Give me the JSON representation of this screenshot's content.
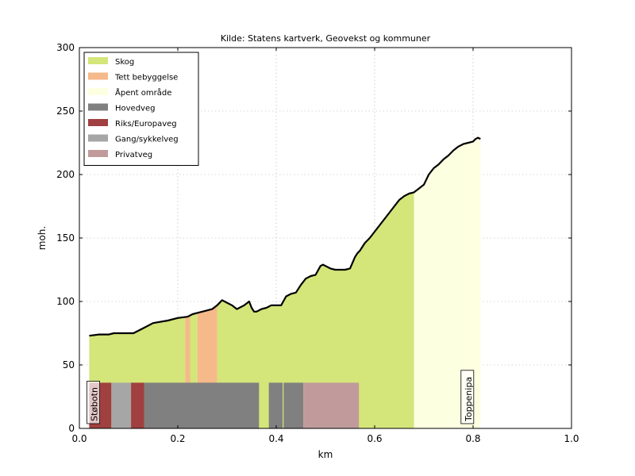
{
  "chart_data": {
    "type": "area",
    "title": "Kilde: Statens kartverk, Geovekst og kommuner",
    "xlabel": "km",
    "ylabel": "moh.",
    "xlim": [
      0.0,
      1.0
    ],
    "ylim": [
      0,
      300
    ],
    "xticks": [
      "0.0",
      "0.2",
      "0.4",
      "0.6",
      "0.8",
      "1.0"
    ],
    "yticks": [
      "0",
      "50",
      "100",
      "150",
      "200",
      "250",
      "300"
    ],
    "grid": true,
    "legend_position": "top-left",
    "legend": [
      {
        "label": "Skog",
        "color": "#d4e57a"
      },
      {
        "label": "Tett bebyggelse",
        "color": "#f5b98a"
      },
      {
        "label": "Åpent område",
        "color": "#fdffe1"
      },
      {
        "label": "Hovedveg",
        "color": "#808080"
      },
      {
        "label": "Riks/Europaveg",
        "color": "#a04040"
      },
      {
        "label": "Gang/sykkelveg",
        "color": "#a6a6a6"
      },
      {
        "label": "Privatveg",
        "color": "#c19b9b"
      }
    ],
    "elevation_profile": {
      "x": [
        0.02,
        0.04,
        0.06,
        0.07,
        0.1,
        0.11,
        0.13,
        0.15,
        0.18,
        0.2,
        0.22,
        0.23,
        0.25,
        0.27,
        0.28,
        0.29,
        0.3,
        0.31,
        0.32,
        0.335,
        0.345,
        0.35,
        0.355,
        0.36,
        0.37,
        0.38,
        0.39,
        0.4,
        0.41,
        0.42,
        0.43,
        0.44,
        0.45,
        0.46,
        0.47,
        0.48,
        0.49,
        0.495,
        0.5,
        0.51,
        0.52,
        0.53,
        0.54,
        0.55,
        0.56,
        0.565,
        0.57,
        0.58,
        0.59,
        0.6,
        0.61,
        0.62,
        0.63,
        0.64,
        0.65,
        0.66,
        0.67,
        0.68,
        0.69,
        0.7,
        0.71,
        0.72,
        0.73,
        0.74,
        0.75,
        0.76,
        0.77,
        0.78,
        0.79,
        0.8,
        0.805,
        0.81,
        0.815
      ],
      "y": [
        73,
        74,
        74,
        75,
        75,
        75,
        79,
        83,
        85,
        87,
        88,
        90,
        92,
        94,
        97,
        101,
        99,
        97,
        94,
        97,
        100,
        95,
        92,
        92,
        94,
        95,
        97,
        97,
        97,
        104,
        106,
        107,
        113,
        118,
        120,
        121,
        128,
        129,
        128,
        126,
        125,
        125,
        125,
        126,
        135,
        138,
        140,
        146,
        150,
        155,
        160,
        165,
        170,
        175,
        180,
        183,
        185,
        186,
        189,
        192,
        200,
        205,
        208,
        212,
        215,
        219,
        222,
        224,
        225,
        226,
        228,
        229,
        228
      ]
    },
    "land_cover": [
      {
        "label": "Skog",
        "x_start": 0.02,
        "x_end": 0.215
      },
      {
        "label": "Tett bebyggelse",
        "x_start": 0.215,
        "x_end": 0.225
      },
      {
        "label": "Skog",
        "x_start": 0.225,
        "x_end": 0.24
      },
      {
        "label": "Tett bebyggelse",
        "x_start": 0.24,
        "x_end": 0.28
      },
      {
        "label": "Skog",
        "x_start": 0.28,
        "x_end": 0.68
      },
      {
        "label": "Åpent område",
        "x_start": 0.68,
        "x_end": 0.815
      }
    ],
    "road_segments": [
      {
        "label": "Riks/Europaveg",
        "x_start": 0.02,
        "x_end": 0.065,
        "height": 36
      },
      {
        "label": "Gang/sykkelveg",
        "x_start": 0.065,
        "x_end": 0.105,
        "height": 36
      },
      {
        "label": "Riks/Europaveg",
        "x_start": 0.105,
        "x_end": 0.132,
        "height": 36
      },
      {
        "label": "Hovedveg",
        "x_start": 0.132,
        "x_end": 0.365,
        "height": 36
      },
      {
        "label": "Hovedveg",
        "x_start": 0.385,
        "x_end": 0.413,
        "height": 36
      },
      {
        "label": "Hovedveg",
        "x_start": 0.415,
        "x_end": 0.455,
        "height": 36
      },
      {
        "label": "Privatveg",
        "x_start": 0.455,
        "x_end": 0.568,
        "height": 36
      }
    ],
    "annotations": [
      {
        "text": "Støbotn",
        "x": 0.03
      },
      {
        "text": "Toppenipa",
        "x": 0.79
      }
    ]
  }
}
